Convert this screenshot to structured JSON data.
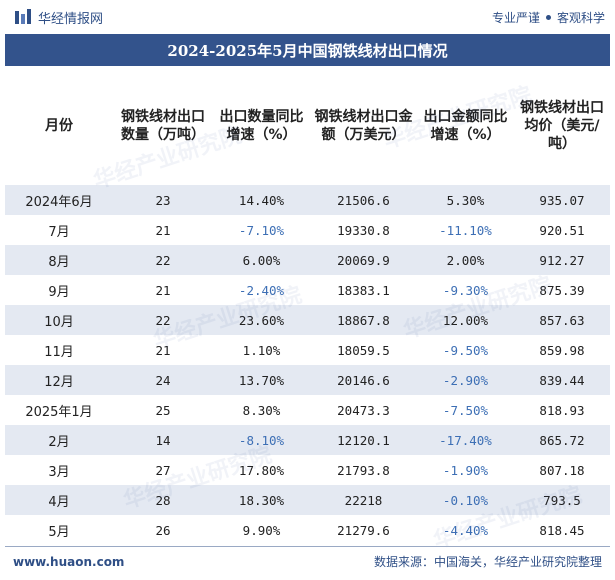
{
  "header": {
    "brand": "华经情报网",
    "slogan_left": "专业严谨",
    "slogan_right": "客观科学"
  },
  "title": "2024-2025年5月中国钢铁线材出口情况",
  "table": {
    "columns": [
      "月份",
      "钢铁线材出口数量（万吨）",
      "出口数量同比增速（%）",
      "钢铁线材出口金额（万美元）",
      "出口金额同比增速（%）",
      "钢铁线材出口均价（美元/吨）"
    ],
    "rows": [
      {
        "month": "2024年6月",
        "qty": "23",
        "qty_yoy": "14.40%",
        "amount": "21506.6",
        "amount_yoy": "5.30%",
        "price": "935.07"
      },
      {
        "month": "7月",
        "qty": "21",
        "qty_yoy": "-7.10%",
        "amount": "19330.8",
        "amount_yoy": "-11.10%",
        "price": "920.51"
      },
      {
        "month": "8月",
        "qty": "22",
        "qty_yoy": "6.00%",
        "amount": "20069.9",
        "amount_yoy": "2.00%",
        "price": "912.27"
      },
      {
        "month": "9月",
        "qty": "21",
        "qty_yoy": "-2.40%",
        "amount": "18383.1",
        "amount_yoy": "-9.30%",
        "price": "875.39"
      },
      {
        "month": "10月",
        "qty": "22",
        "qty_yoy": "23.60%",
        "amount": "18867.8",
        "amount_yoy": "12.00%",
        "price": "857.63"
      },
      {
        "month": "11月",
        "qty": "21",
        "qty_yoy": "1.10%",
        "amount": "18059.5",
        "amount_yoy": "-9.50%",
        "price": "859.98"
      },
      {
        "month": "12月",
        "qty": "24",
        "qty_yoy": "13.70%",
        "amount": "20146.6",
        "amount_yoy": "-2.90%",
        "price": "839.44"
      },
      {
        "month": "2025年1月",
        "qty": "25",
        "qty_yoy": "8.30%",
        "amount": "20473.3",
        "amount_yoy": "-7.50%",
        "price": "818.93"
      },
      {
        "month": "2月",
        "qty": "14",
        "qty_yoy": "-8.10%",
        "amount": "12120.1",
        "amount_yoy": "-17.40%",
        "price": "865.72"
      },
      {
        "month": "3月",
        "qty": "27",
        "qty_yoy": "17.80%",
        "amount": "21793.8",
        "amount_yoy": "-1.90%",
        "price": "807.18"
      },
      {
        "month": "4月",
        "qty": "28",
        "qty_yoy": "18.30%",
        "amount": "22218",
        "amount_yoy": "-0.10%",
        "price": "793.5"
      },
      {
        "month": "5月",
        "qty": "26",
        "qty_yoy": "9.90%",
        "amount": "21279.6",
        "amount_yoy": "-4.40%",
        "price": "818.45"
      }
    ]
  },
  "watermark": "华经产业研究院",
  "footer": {
    "url": "www.huaon.com",
    "source": "数据来源：中国海关，华经产业研究院整理"
  },
  "colors": {
    "title_bg": "#33538c",
    "stripe": "#e4e9f2",
    "negative": "#3d6fb5"
  }
}
